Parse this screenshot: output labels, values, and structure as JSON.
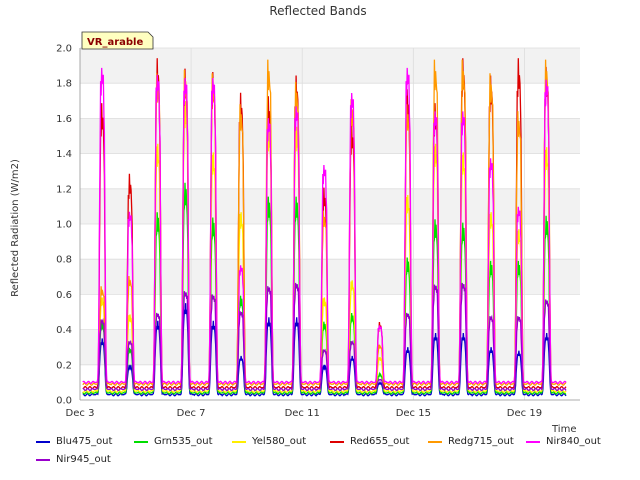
{
  "chart_data": {
    "type": "line",
    "title": "Reflected Bands",
    "xlabel": "Time",
    "ylabel": "Reflected Radiation (W/m2)",
    "badge": "VR_arable",
    "xlim": [
      3.0,
      21.0
    ],
    "ylim": [
      0.0,
      2.0
    ],
    "x_ticks": [
      {
        "value": 3,
        "label": "Dec 3"
      },
      {
        "value": 7,
        "label": "Dec 7"
      },
      {
        "value": 11,
        "label": "Dec 11"
      },
      {
        "value": 15,
        "label": "Dec 15"
      },
      {
        "value": 19,
        "label": "Dec 19"
      }
    ],
    "y_ticks": [
      0.0,
      0.2,
      0.4,
      0.6,
      0.8,
      1.0,
      1.2,
      1.4,
      1.6,
      1.8,
      2.0
    ],
    "y_tick_labels": [
      "0.0",
      "0.2",
      "0.4",
      "0.6",
      "0.8",
      "1.0",
      "1.2",
      "1.4",
      "1.6",
      "1.8",
      "2.0"
    ],
    "grid": true,
    "legend_position": "bottom",
    "day_centers": [
      3.8,
      4.8,
      5.8,
      6.8,
      7.8,
      8.8,
      9.8,
      10.8,
      11.8,
      12.8,
      13.8,
      14.8,
      15.8,
      16.8,
      17.8,
      18.8,
      19.8
    ],
    "series": [
      {
        "name": "Blu475_out",
        "color": "#0000cc",
        "baseline": 0.03,
        "peaks": [
          0.35,
          0.2,
          0.45,
          0.55,
          0.45,
          0.25,
          0.47,
          0.47,
          0.2,
          0.25,
          0.1,
          0.3,
          0.38,
          0.38,
          0.3,
          0.28,
          0.38
        ]
      },
      {
        "name": "Grn535_out",
        "color": "#00dd00",
        "baseline": 0.04,
        "peaks": [
          0.45,
          0.3,
          1.08,
          1.25,
          1.05,
          0.6,
          1.17,
          1.17,
          0.45,
          0.5,
          0.15,
          0.82,
          1.04,
          1.02,
          0.8,
          0.8,
          1.06
        ]
      },
      {
        "name": "Yel580_out",
        "color": "#ffee00",
        "baseline": 0.05,
        "peaks": [
          0.6,
          0.5,
          1.5,
          1.75,
          1.45,
          1.1,
          1.6,
          1.6,
          0.6,
          0.7,
          0.25,
          1.2,
          1.5,
          1.45,
          1.1,
          1.0,
          1.48
        ]
      },
      {
        "name": "Red655_out",
        "color": "#dd0000",
        "baseline": 0.07,
        "peaks": [
          1.72,
          1.31,
          1.98,
          1.92,
          1.9,
          1.78,
          1.76,
          1.88,
          1.23,
          1.6,
          0.45,
          1.8,
          1.72,
          1.98,
          1.88,
          1.98,
          1.93
        ]
      },
      {
        "name": "Redg715_out",
        "color": "#ff9900",
        "baseline": 0.09,
        "peaks": [
          0.66,
          0.72,
          1.9,
          1.92,
          1.9,
          1.72,
          1.98,
          1.85,
          1.1,
          1.75,
          0.32,
          1.72,
          1.98,
          1.98,
          1.9,
          1.68,
          1.98
        ]
      },
      {
        "name": "Nir840_out",
        "color": "#ff00ff",
        "baseline": 0.1,
        "peaks": [
          1.98,
          1.12,
          1.94,
          1.92,
          1.92,
          0.8,
          1.68,
          1.75,
          1.4,
          1.83,
          0.44,
          1.98,
          1.72,
          1.72,
          1.44,
          1.15,
          1.91
        ]
      },
      {
        "name": "Nir945_out",
        "color": "#9900cc",
        "baseline": 0.06,
        "peaks": [
          0.48,
          0.35,
          0.52,
          0.65,
          0.63,
          0.53,
          0.68,
          0.7,
          0.3,
          0.35,
          0.12,
          0.52,
          0.69,
          0.7,
          0.5,
          0.5,
          0.6
        ]
      }
    ]
  }
}
